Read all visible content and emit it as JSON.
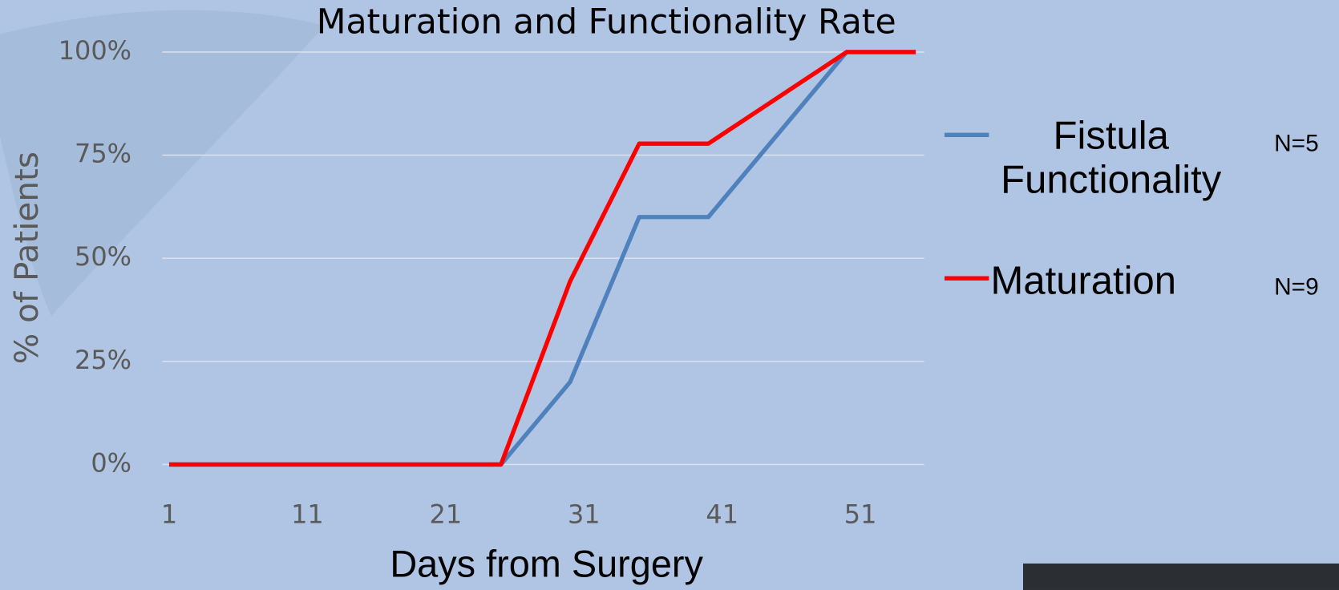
{
  "chart_data": {
    "type": "line",
    "title": "Maturation and Functionality Rate",
    "x_label": "Days from Surgery",
    "y_label": "% of Patients",
    "x": [
      1,
      25,
      30,
      35,
      40,
      50,
      55
    ],
    "series": [
      {
        "name": "Fistula Functionality",
        "color": "#4f81bd",
        "values": [
          0,
          0,
          20,
          60,
          60,
          100,
          100
        ]
      },
      {
        "name": "Maturation",
        "color": "#ff0000",
        "values": [
          0,
          0,
          44.4,
          77.8,
          77.8,
          100,
          100
        ]
      }
    ],
    "annotations": [
      "N=5",
      "N=9"
    ],
    "xlim": [
      0.5,
      55.6
    ],
    "xticks": [
      1,
      11,
      21,
      31,
      41,
      51
    ],
    "ylim": [
      0,
      100
    ],
    "yticks": [
      {
        "value": 0,
        "label": "0%"
      },
      {
        "value": 25,
        "label": "25%"
      },
      {
        "value": 50,
        "label": "50%"
      },
      {
        "value": 75,
        "label": "75%"
      },
      {
        "value": 100,
        "label": "100%"
      }
    ],
    "grid": true,
    "legend": "right"
  }
}
